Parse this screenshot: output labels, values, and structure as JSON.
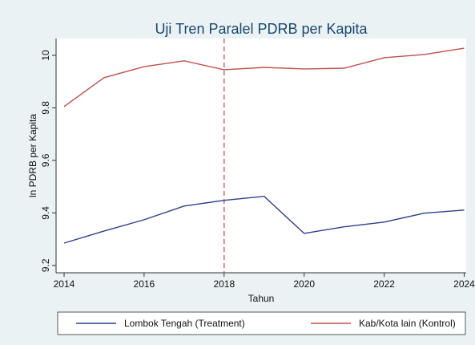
{
  "chart_data": {
    "type": "line",
    "title": "Uji Tren Paralel PDRB per Kapita",
    "x_label": "Tahun",
    "y_label": "ln PDRB per Kapita",
    "x": [
      2014,
      2015,
      2016,
      2017,
      2018,
      2019,
      2020,
      2021,
      2022,
      2023,
      2024
    ],
    "series": [
      {
        "name": "Lombok Tengah (Treatment)",
        "color": "#2e3f8f",
        "values": [
          9.285,
          9.331,
          9.374,
          9.426,
          9.448,
          9.463,
          9.322,
          9.347,
          9.365,
          9.399,
          9.411
        ]
      },
      {
        "name": "Kab/Kota lain (Kontrol)",
        "color": "#c0504d",
        "values": [
          9.805,
          9.915,
          9.957,
          9.979,
          9.945,
          9.954,
          9.948,
          9.951,
          9.991,
          10.003,
          10.027
        ]
      }
    ],
    "xlim": [
      2013.8,
      2024.05
    ],
    "xticks": [
      2014,
      2016,
      2018,
      2020,
      2022,
      2024
    ],
    "ylim": [
      9.172,
      10.064
    ],
    "yticks": [
      9.2,
      9.4,
      9.6,
      9.8,
      {
        "value": 10,
        "label": "10"
      }
    ],
    "vline": 2018,
    "vline_color": "#c0504d",
    "grid": false,
    "legend": "bottom"
  }
}
